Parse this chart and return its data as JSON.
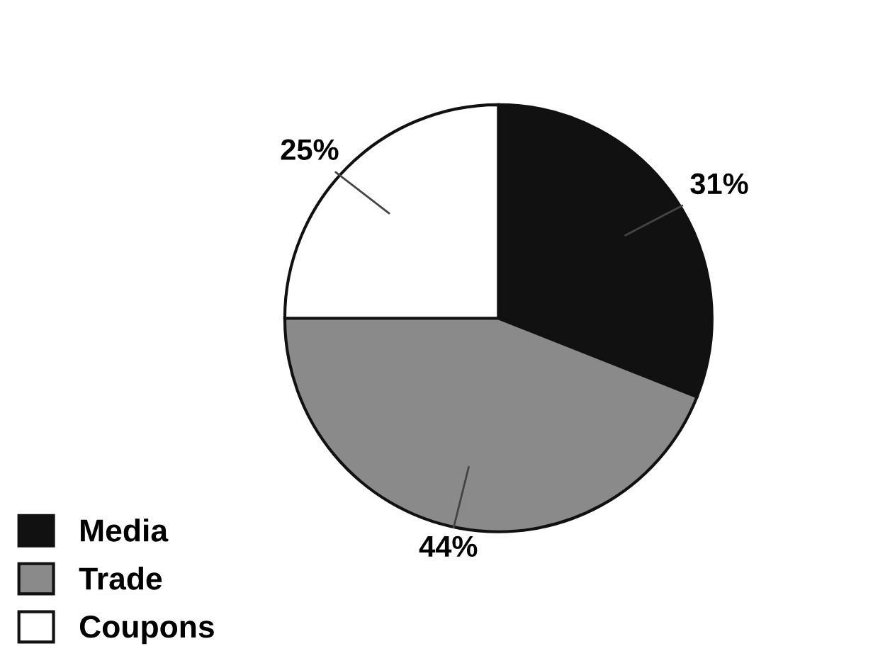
{
  "chart_data": {
    "type": "pie",
    "categories": [
      "Media",
      "Trade",
      "Coupons"
    ],
    "values": [
      31,
      44,
      25
    ],
    "colors": [
      "#111111",
      "#8a8a8a",
      "#ffffff"
    ],
    "value_labels": [
      "31%",
      "44%",
      "25%"
    ],
    "legend": "bottom left"
  }
}
